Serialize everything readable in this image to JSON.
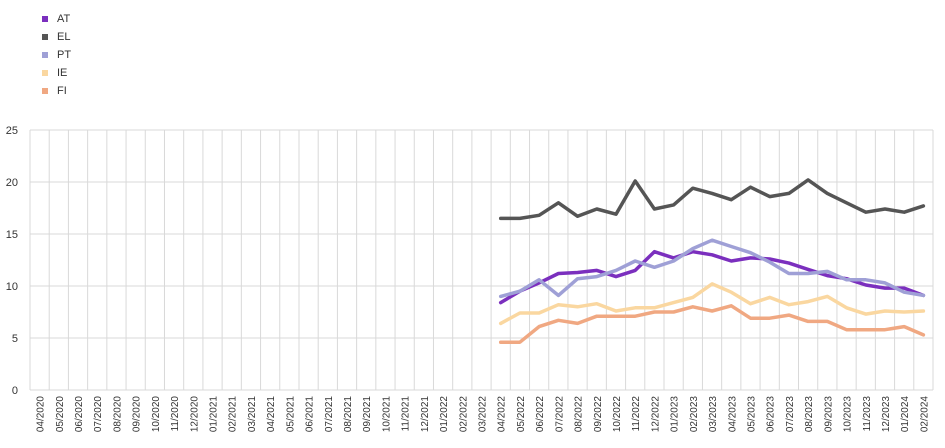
{
  "chart_data": {
    "type": "line",
    "title": "",
    "xlabel": "",
    "ylabel": "",
    "ylim": [
      0,
      25
    ],
    "yticks": [
      0,
      5,
      10,
      15,
      20,
      25
    ],
    "grid": true,
    "legend_position": "top-left",
    "categories": [
      "04/2020",
      "05/2020",
      "06/2020",
      "07/2020",
      "08/2020",
      "09/2020",
      "10/2020",
      "11/2020",
      "12/2020",
      "01/2021",
      "02/2021",
      "03/2021",
      "04/2021",
      "05/2021",
      "06/2021",
      "07/2021",
      "08/2021",
      "09/2021",
      "10/2021",
      "11/2021",
      "12/2021",
      "01/2022",
      "02/2022",
      "03/2022",
      "04/2022",
      "05/2022",
      "06/2022",
      "07/2022",
      "08/2022",
      "09/2022",
      "10/2022",
      "11/2022",
      "12/2022",
      "01/2023",
      "02/2023",
      "03/2023",
      "04/2023",
      "05/2023",
      "06/2023",
      "07/2023",
      "08/2023",
      "09/2023",
      "10/2023",
      "11/2023",
      "12/2023",
      "01/2024",
      "02/2024"
    ],
    "series": [
      {
        "name": "AT",
        "color": "#7B2FBE",
        "values": [
          null,
          null,
          null,
          null,
          null,
          null,
          null,
          null,
          null,
          null,
          null,
          null,
          null,
          null,
          null,
          null,
          null,
          null,
          null,
          null,
          null,
          null,
          null,
          null,
          8.4,
          9.5,
          10.3,
          11.2,
          11.3,
          11.5,
          10.9,
          11.5,
          13.3,
          12.7,
          13.3,
          13.0,
          12.4,
          12.7,
          12.6,
          12.2,
          11.6,
          11.0,
          10.7,
          10.1,
          9.8,
          9.8,
          9.1
        ]
      },
      {
        "name": "EL",
        "color": "#555555",
        "values": [
          null,
          null,
          null,
          null,
          null,
          null,
          null,
          null,
          null,
          null,
          null,
          null,
          null,
          null,
          null,
          null,
          null,
          null,
          null,
          null,
          null,
          null,
          null,
          null,
          16.5,
          16.5,
          16.8,
          18.0,
          16.7,
          17.4,
          16.9,
          20.1,
          17.4,
          17.8,
          19.4,
          18.9,
          18.3,
          19.5,
          18.6,
          18.9,
          20.2,
          18.9,
          18.0,
          17.1,
          17.4,
          17.1,
          17.7
        ]
      },
      {
        "name": "PT",
        "color": "#9FA0D6",
        "values": [
          null,
          null,
          null,
          null,
          null,
          null,
          null,
          null,
          null,
          null,
          null,
          null,
          null,
          null,
          null,
          null,
          null,
          null,
          null,
          null,
          null,
          null,
          null,
          null,
          9.0,
          9.5,
          10.6,
          9.1,
          10.7,
          10.9,
          11.5,
          12.4,
          11.8,
          12.4,
          13.6,
          14.4,
          13.8,
          13.2,
          12.3,
          11.2,
          11.2,
          11.4,
          10.6,
          10.6,
          10.3,
          9.4,
          9.1
        ]
      },
      {
        "name": "IE",
        "color": "#FAD7A0",
        "values": [
          null,
          null,
          null,
          null,
          null,
          null,
          null,
          null,
          null,
          null,
          null,
          null,
          null,
          null,
          null,
          null,
          null,
          null,
          null,
          null,
          null,
          null,
          null,
          null,
          6.4,
          7.4,
          7.4,
          8.2,
          8.0,
          8.3,
          7.6,
          7.9,
          7.9,
          8.4,
          8.9,
          10.2,
          9.4,
          8.3,
          8.9,
          8.2,
          8.5,
          9.0,
          7.9,
          7.3,
          7.6,
          7.5,
          7.6
        ]
      },
      {
        "name": "FI",
        "color": "#F0A882",
        "values": [
          null,
          null,
          null,
          null,
          null,
          null,
          null,
          null,
          null,
          null,
          null,
          null,
          null,
          null,
          null,
          null,
          null,
          null,
          null,
          null,
          null,
          null,
          null,
          null,
          4.6,
          4.6,
          6.1,
          6.7,
          6.4,
          7.1,
          7.1,
          7.1,
          7.5,
          7.5,
          8.0,
          7.6,
          8.1,
          6.9,
          6.9,
          7.2,
          6.6,
          6.6,
          5.8,
          5.8,
          5.8,
          6.1,
          5.3
        ]
      }
    ]
  }
}
